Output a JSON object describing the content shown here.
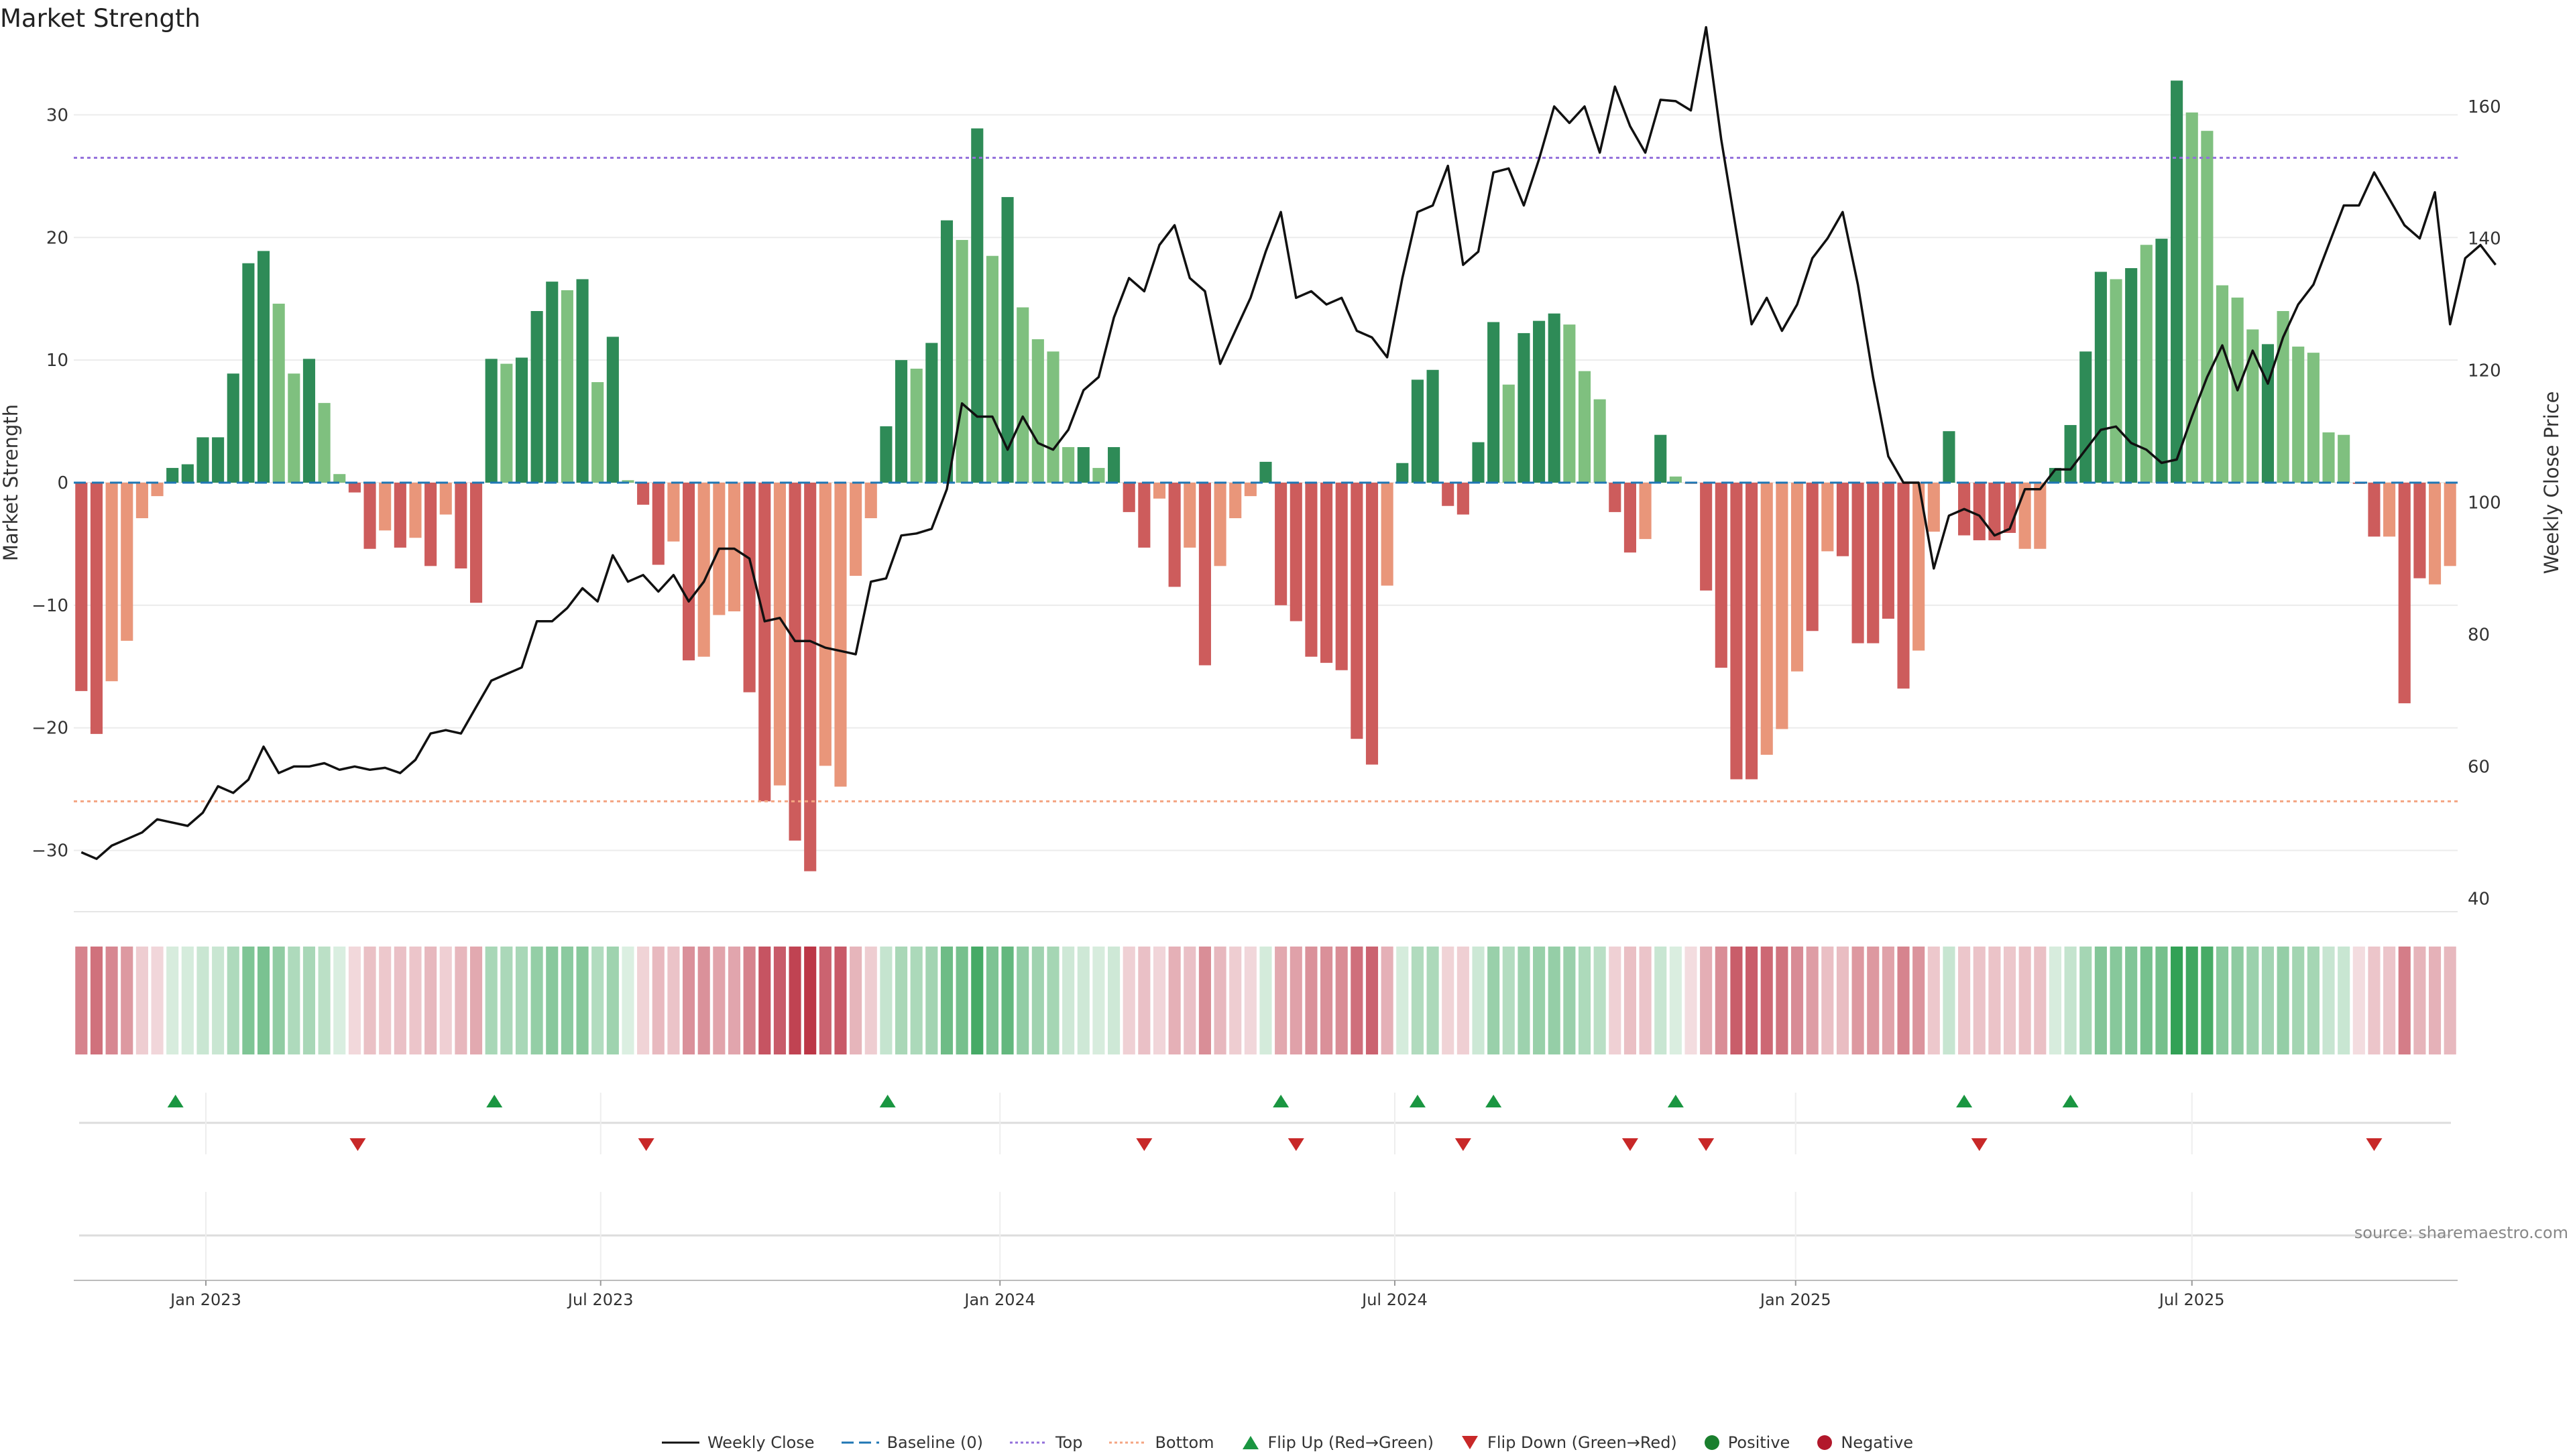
{
  "title": "Market Strength",
  "source": "source: sharemaestro.com",
  "legend": {
    "weekly_close": "Weekly Close",
    "baseline": "Baseline (0)",
    "top": "Top",
    "bottom": "Bottom",
    "flip_up": "Flip Up (Red→Green)",
    "flip_down": "Flip Down (Green→Red)",
    "positive": "Positive",
    "negative": "Negative"
  },
  "colors": {
    "pos_strong": "#2e8b57",
    "pos_light": "#7fc07f",
    "neg_strong": "#cd5c5c",
    "neg_light": "#e9967a",
    "top_line": "#9370db",
    "bottom_line": "#f4a582",
    "baseline": "#1f77b4",
    "flip_up": "#1a9641",
    "flip_down": "#c82828",
    "positive_dot": "#1a7f2e",
    "negative_dot": "#b2182b"
  },
  "chart_data": {
    "type": "bar",
    "title": "Market Strength",
    "x_ticks": [
      "Jan 2023",
      "Jul 2023",
      "Jan 2024",
      "Jul 2024",
      "Jan 2025",
      "Jul 2025"
    ],
    "x_tick_weeks": [
      8.7,
      34.7,
      61,
      87,
      113.4,
      139.5
    ],
    "y_left": {
      "label": "Market Strength",
      "lim": [
        -35,
        35
      ],
      "ticks": [
        -30,
        -20,
        -10,
        0,
        10,
        20,
        30
      ]
    },
    "y_right": {
      "label": "Weekly Close Price",
      "lim": [
        38,
        168
      ],
      "ticks": [
        40,
        60,
        80,
        100,
        120,
        140,
        160
      ]
    },
    "top_threshold": 26.5,
    "bottom_threshold": -26,
    "baseline": 0,
    "strength": [
      -17,
      -20.5,
      -16.2,
      -12.9,
      -2.9,
      -1.1,
      1.2,
      1.5,
      3.7,
      3.7,
      8.9,
      17.9,
      18.9,
      14.6,
      8.9,
      10.1,
      6.5,
      0.7,
      -0.8,
      -5.4,
      -3.9,
      -5.3,
      -4.5,
      -6.8,
      -2.6,
      -7,
      -9.8,
      10.1,
      9.7,
      10.2,
      14,
      16.4,
      15.7,
      16.6,
      8.2,
      11.9,
      0.2,
      -1.8,
      -6.7,
      -4.8,
      -14.5,
      -14.2,
      -10.8,
      -10.5,
      -17.1,
      -26,
      -24.7,
      -29.2,
      -31.7,
      -23.1,
      -24.8,
      -7.6,
      -2.9,
      4.6,
      10,
      9.3,
      11.4,
      21.4,
      19.8,
      28.9,
      18.5,
      23.3,
      14.3,
      11.7,
      10.7,
      2.9,
      2.9,
      1.2,
      2.9,
      -2.4,
      -5.3,
      -1.3,
      -8.5,
      -5.3,
      -14.9,
      -6.8,
      -2.9,
      -1.1,
      1.7,
      -10,
      -11.3,
      -14.2,
      -14.7,
      -15.3,
      -20.9,
      -23,
      -8.4,
      1.6,
      8.4,
      9.2,
      -1.9,
      -2.6,
      3.3,
      13.1,
      8,
      12.2,
      13.2,
      13.8,
      12.9,
      9.1,
      6.8,
      -2.4,
      -5.7,
      -4.6,
      3.9,
      0.5,
      -0.1,
      -8.8,
      -15.1,
      -24.2,
      -24.2,
      -22.2,
      -20.1,
      -15.4,
      -12.1,
      -5.6,
      -6,
      -13.1,
      -13.1,
      -11.1,
      -16.8,
      -13.7,
      -4,
      4.2,
      -4.3,
      -4.7,
      -4.7,
      -4.1,
      -5.4,
      -5.4,
      1.2,
      4.7,
      10.7,
      17.2,
      16.6,
      17.5,
      19.4,
      19.9,
      32.8,
      30.2,
      28.7,
      16.1,
      15.1,
      12.5,
      11.3,
      14,
      11.1,
      10.6,
      4.1,
      3.9,
      -0.1,
      -4.4,
      -4.4,
      -18,
      -7.8,
      -8.3,
      -6.8
    ],
    "strength_shade": [
      1,
      1,
      0,
      0,
      0,
      0,
      1,
      1,
      1,
      1,
      1,
      1,
      1,
      0,
      0,
      1,
      0,
      0,
      1,
      1,
      0,
      1,
      0,
      1,
      0,
      1,
      1,
      1,
      0,
      1,
      1,
      1,
      0,
      1,
      0,
      1,
      0,
      1,
      1,
      0,
      1,
      0,
      0,
      0,
      1,
      1,
      0,
      1,
      1,
      0,
      0,
      0,
      0,
      1,
      1,
      0,
      1,
      1,
      0,
      1,
      0,
      1,
      0,
      0,
      0,
      0,
      1,
      0,
      1,
      1,
      1,
      0,
      1,
      0,
      1,
      0,
      0,
      0,
      1,
      1,
      1,
      1,
      1,
      1,
      1,
      1,
      0,
      1,
      1,
      1,
      1,
      1,
      1,
      1,
      0,
      1,
      1,
      1,
      0,
      0,
      0,
      1,
      1,
      0,
      1,
      0,
      0,
      1,
      1,
      1,
      1,
      0,
      0,
      0,
      1,
      0,
      1,
      1,
      1,
      1,
      1,
      0,
      0,
      1,
      1,
      1,
      1,
      1,
      0,
      0,
      1,
      1,
      1,
      1,
      0,
      1,
      0,
      1,
      1,
      0,
      0,
      0,
      0,
      0,
      1,
      0,
      0,
      0,
      0,
      0,
      1,
      1,
      0,
      1,
      1,
      0
    ],
    "weekly_close": [
      47,
      46,
      48,
      49,
      50,
      52,
      51.5,
      51,
      53,
      57,
      56,
      58,
      63,
      59,
      60,
      60,
      60.5,
      59.5,
      60,
      59.5,
      59.8,
      59,
      61,
      65,
      65.5,
      65,
      69,
      73,
      74,
      75,
      82,
      82,
      84,
      87,
      85,
      92,
      88,
      89,
      86.5,
      89,
      85,
      88,
      93,
      93,
      91.5,
      82,
      82.5,
      79,
      79,
      78,
      77.5,
      77,
      88,
      88.5,
      95,
      95.3,
      96,
      102,
      115,
      113,
      113,
      108,
      113,
      109,
      108,
      111,
      117,
      119,
      128,
      134,
      132,
      139,
      142,
      134,
      132,
      121,
      126,
      131,
      138,
      144,
      131,
      132,
      130,
      131,
      126,
      125,
      122,
      134,
      144,
      145,
      151,
      136,
      138,
      150,
      150.6,
      145,
      152,
      160,
      157.5,
      160,
      153,
      163,
      157,
      153,
      161,
      160.8,
      159.4,
      172,
      155,
      141,
      127,
      131,
      126,
      130,
      137,
      140,
      144,
      133,
      119,
      107,
      103,
      103,
      90,
      98,
      99,
      98,
      95,
      96,
      102,
      102,
      105,
      105,
      108,
      111,
      111.5,
      109,
      108,
      106,
      106.5,
      113,
      119,
      123.8,
      117,
      123,
      118,
      125,
      130,
      133,
      139,
      145,
      145,
      150,
      146,
      142,
      140,
      147,
      127,
      137,
      139,
      136
    ],
    "flip_up_weeks": [
      6.2,
      27.2,
      53.1,
      79,
      88,
      93,
      105,
      124,
      131
    ],
    "flip_down_weeks": [
      18.2,
      37.2,
      70,
      80,
      91,
      102,
      107,
      125,
      151
    ]
  }
}
